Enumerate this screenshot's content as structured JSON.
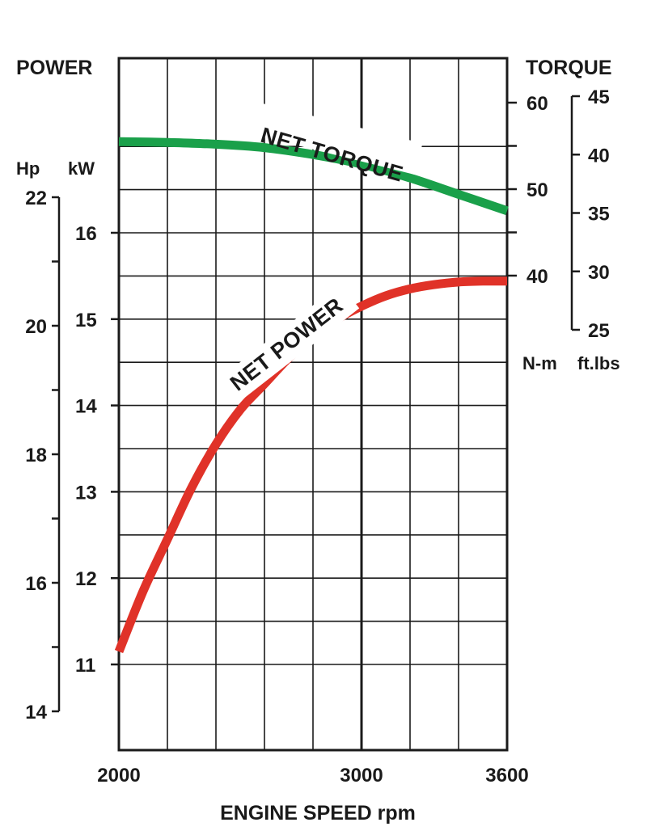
{
  "chart_data": {
    "type": "line",
    "title": "",
    "x": {
      "label": "ENGINE SPEED rpm",
      "range": [
        2000,
        3600
      ],
      "ticks": [
        2000,
        3000,
        3600
      ],
      "gridlines": [
        2000,
        2200,
        2400,
        2600,
        2800,
        3000,
        3200,
        3400,
        3600
      ]
    },
    "left_axis": {
      "title": "POWER",
      "kw": {
        "unit": "kW",
        "range": [
          10.1,
          18.1
        ],
        "ticks": [
          11,
          12,
          13,
          14,
          15,
          16
        ]
      },
      "hp": {
        "unit": "Hp",
        "range": [
          14,
          22
        ],
        "ticks": [
          14,
          16,
          18,
          20,
          22
        ]
      }
    },
    "right_axis": {
      "title": "TORQUE",
      "nm": {
        "unit": "N-m",
        "range": [
          40,
          60
        ],
        "ticks": [
          40,
          50,
          60
        ]
      },
      "ftlbs": {
        "unit": "ft.lbs",
        "range": [
          25,
          45
        ],
        "ticks": [
          25,
          30,
          35,
          40,
          45
        ]
      }
    },
    "grid": true,
    "series": [
      {
        "name": "NET TORQUE",
        "axis": "torque",
        "unit": "N-m",
        "color": "#1aa04a",
        "x": [
          2000,
          2200,
          2400,
          2600,
          2800,
          3000,
          3200,
          3400,
          3600
        ],
        "values": [
          55.5,
          55.4,
          55.2,
          54.8,
          54.0,
          52.9,
          51.3,
          49.4,
          47.5
        ]
      },
      {
        "name": "NET POWER",
        "axis": "power",
        "unit": "kW",
        "color": "#e03228",
        "x": [
          2000,
          2100,
          2200,
          2300,
          2400,
          2500,
          2600,
          2700,
          2800,
          2900,
          3000,
          3100,
          3200,
          3300,
          3400,
          3500,
          3600
        ],
        "values": [
          11.15,
          11.85,
          12.45,
          13.05,
          13.55,
          13.95,
          14.25,
          14.55,
          14.8,
          15.0,
          15.15,
          15.27,
          15.35,
          15.4,
          15.43,
          15.44,
          15.44
        ]
      }
    ]
  }
}
